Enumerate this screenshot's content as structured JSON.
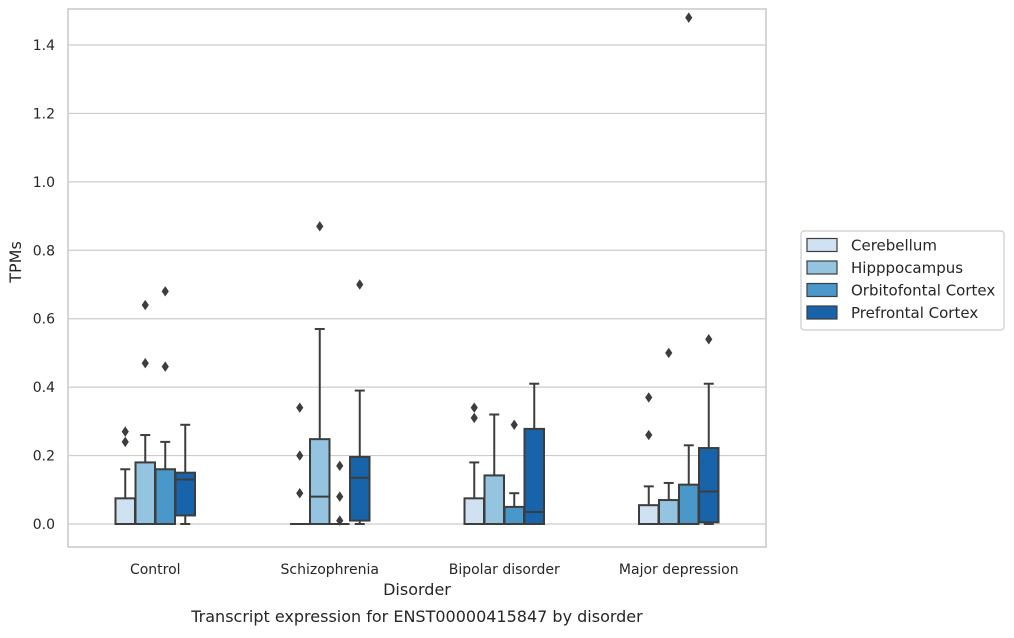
{
  "chart_data": {
    "type": "box",
    "title": "",
    "caption": "Transcript expression for ENST00000415847 by disorder",
    "xlabel": "Disorder",
    "ylabel": "TPMs",
    "ylim": [
      -0.07,
      1.56
    ],
    "yticks": [
      0.0,
      0.2,
      0.4,
      0.6,
      0.8,
      1.0,
      1.2,
      1.4
    ],
    "ytick_labels": [
      "0.0",
      "0.2",
      "0.4",
      "0.6",
      "0.8",
      "1.0",
      "1.2",
      "1.4"
    ],
    "grid": "horizontal",
    "legend_position": "right",
    "categories": [
      "Control",
      "Schizophrenia",
      "Bipolar disorder",
      "Major depression"
    ],
    "series": [
      {
        "name": "Cerebellum",
        "color": "#d0e1f2",
        "boxes": [
          {
            "whislo": 0.0,
            "q1": 0.0,
            "med": 0.0,
            "q3": 0.075,
            "whishi": 0.16,
            "fliers": [
              0.24,
              0.27
            ]
          },
          {
            "whislo": 0.0,
            "q1": 0.0,
            "med": 0.0,
            "q3": 0.0,
            "whishi": 0.0,
            "fliers": [
              0.09,
              0.2,
              0.34
            ]
          },
          {
            "whislo": 0.0,
            "q1": 0.0,
            "med": 0.0,
            "q3": 0.075,
            "whishi": 0.18,
            "fliers": [
              0.31,
              0.34
            ]
          },
          {
            "whislo": 0.0,
            "q1": 0.0,
            "med": 0.0,
            "q3": 0.055,
            "whishi": 0.11,
            "fliers": [
              0.26,
              0.37
            ]
          }
        ]
      },
      {
        "name": "Hipppocampus",
        "color": "#94c4df",
        "boxes": [
          {
            "whislo": 0.0,
            "q1": 0.0,
            "med": 0.0,
            "q3": 0.18,
            "whishi": 0.26,
            "fliers": [
              0.47,
              0.64
            ]
          },
          {
            "whislo": 0.0,
            "q1": 0.0,
            "med": 0.08,
            "q3": 0.248,
            "whishi": 0.57,
            "fliers": [
              0.87
            ]
          },
          {
            "whislo": 0.0,
            "q1": 0.0,
            "med": 0.0,
            "q3": 0.142,
            "whishi": 0.32,
            "fliers": []
          },
          {
            "whislo": 0.0,
            "q1": 0.0,
            "med": 0.0,
            "q3": 0.07,
            "whishi": 0.12,
            "fliers": [
              0.5
            ]
          }
        ]
      },
      {
        "name": "Orbitofontal Cortex",
        "color": "#4a98c9",
        "boxes": [
          {
            "whislo": 0.0,
            "q1": 0.0,
            "med": 0.0,
            "q3": 0.16,
            "whishi": 0.24,
            "fliers": [
              0.46,
              0.68
            ]
          },
          {
            "whislo": 0.0,
            "q1": 0.0,
            "med": 0.0,
            "q3": 0.0,
            "whishi": 0.0,
            "fliers": [
              0.01,
              0.08,
              0.17
            ]
          },
          {
            "whislo": 0.0,
            "q1": 0.0,
            "med": 0.0,
            "q3": 0.05,
            "whishi": 0.09,
            "fliers": [
              0.29
            ]
          },
          {
            "whislo": 0.0,
            "q1": 0.0,
            "med": 0.0,
            "q3": 0.115,
            "whishi": 0.23,
            "fliers": [
              1.48
            ]
          }
        ]
      },
      {
        "name": "Prefrontal Cortex",
        "color": "#1764ab",
        "boxes": [
          {
            "whislo": 0.0,
            "q1": 0.025,
            "med": 0.13,
            "q3": 0.15,
            "whishi": 0.29,
            "fliers": []
          },
          {
            "whislo": 0.0,
            "q1": 0.01,
            "med": 0.135,
            "q3": 0.196,
            "whishi": 0.39,
            "fliers": [
              0.7
            ]
          },
          {
            "whislo": 0.0,
            "q1": 0.0,
            "med": 0.035,
            "q3": 0.278,
            "whishi": 0.41,
            "fliers": []
          },
          {
            "whislo": 0.0,
            "q1": 0.005,
            "med": 0.095,
            "q3": 0.222,
            "whishi": 0.41,
            "fliers": [
              0.54
            ]
          }
        ]
      }
    ],
    "style_colors": {
      "grid": "#cccccc",
      "spine": "#cccccc",
      "line": "#3d3d3d",
      "text": "#262626"
    }
  }
}
